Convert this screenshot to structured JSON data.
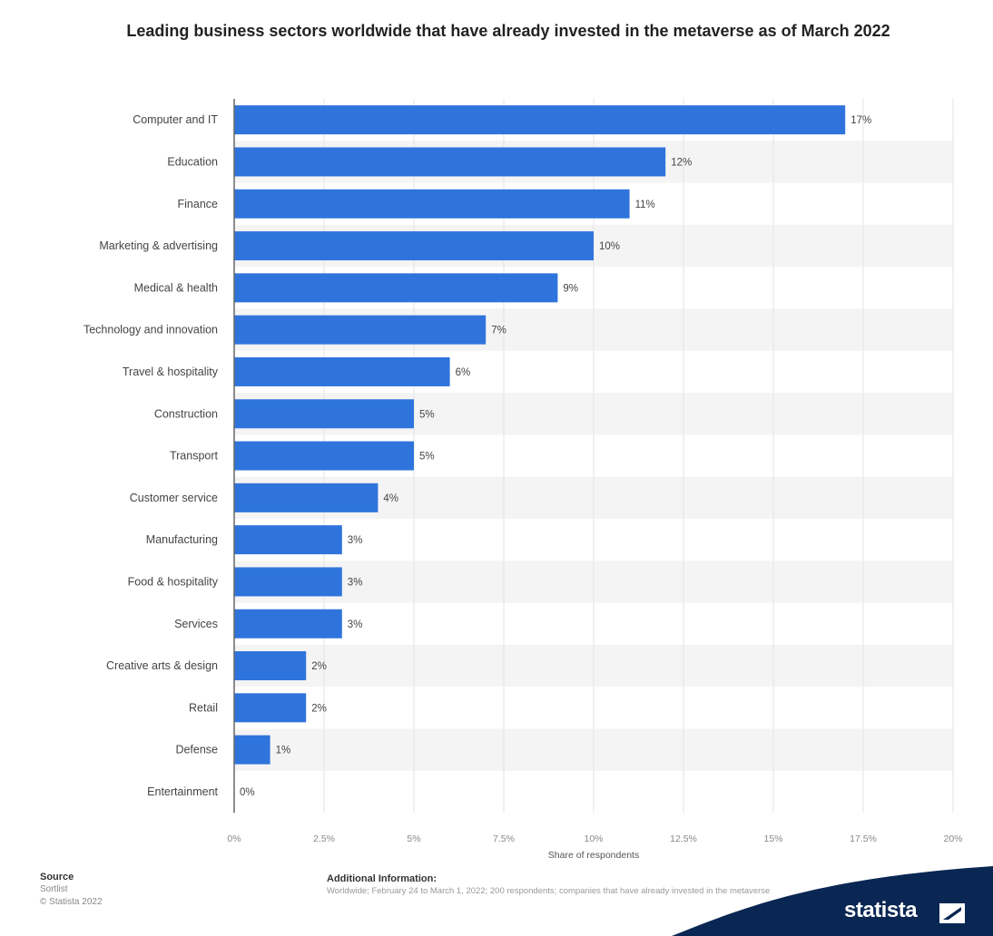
{
  "chart_data": {
    "type": "bar",
    "orientation": "horizontal",
    "title": "Leading business sectors worldwide that have already invested in the metaverse as of March 2022",
    "categories": [
      "Computer and IT",
      "Education",
      "Finance",
      "Marketing & advertising",
      "Medical & health",
      "Technology and innovation",
      "Travel & hospitality",
      "Construction",
      "Transport",
      "Customer service",
      "Manufacturing",
      "Food & hospitality",
      "Services",
      "Creative arts & design",
      "Retail",
      "Defense",
      "Entertainment"
    ],
    "values": [
      17,
      12,
      11,
      10,
      9,
      7,
      6,
      5,
      5,
      4,
      3,
      3,
      3,
      2,
      2,
      1,
      0
    ],
    "value_labels": [
      "17%",
      "12%",
      "11%",
      "10%",
      "9%",
      "7%",
      "6%",
      "5%",
      "5%",
      "4%",
      "3%",
      "3%",
      "3%",
      "2%",
      "2%",
      "1%",
      "0%"
    ],
    "xlabel": "Share of respondents",
    "ylabel": "",
    "xlim": [
      0,
      20
    ],
    "x_ticks": [
      0,
      2.5,
      5,
      7.5,
      10,
      12.5,
      15,
      17.5,
      20
    ],
    "x_tick_labels": [
      "0%",
      "2.5%",
      "5%",
      "7.5%",
      "10%",
      "12.5%",
      "15%",
      "17.5%",
      "20%"
    ],
    "grid": true,
    "bar_color": "#2f74dd"
  },
  "footer": {
    "source_heading": "Source",
    "source_name": "Sortlist",
    "copyright": "© Statista 2022",
    "info_heading": "Additional Information:",
    "info_text": "Worldwide; February 24 to March 1, 2022; 200 respondents; companies that have already invested in the metaverse"
  },
  "brand": {
    "name": "statista",
    "swoosh_color": "#0a2753"
  }
}
